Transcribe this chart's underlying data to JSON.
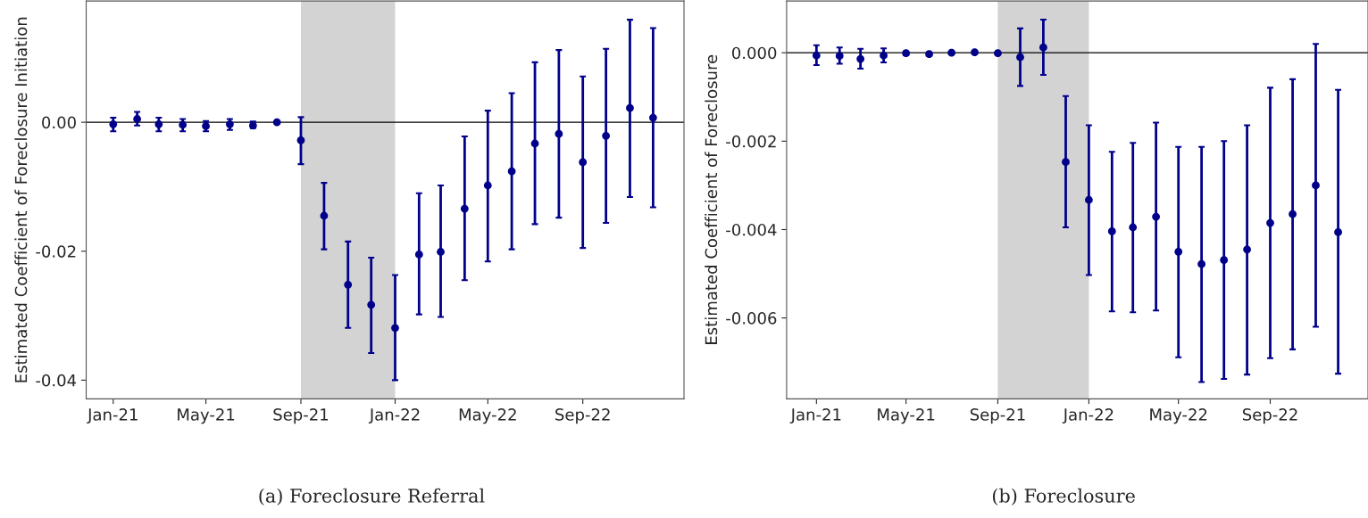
{
  "chart_data": [
    {
      "type": "scatter",
      "ylabel": "Estimated Coefficient of Foreclosure Initiation",
      "annotations": [
        "(a) Foreclosure Referral"
      ],
      "x": [
        "2021-01",
        "2021-02",
        "2021-03",
        "2021-04",
        "2021-05",
        "2021-06",
        "2021-07",
        "2021-08",
        "2021-09",
        "2021-10",
        "2021-11",
        "2021-12",
        "2022-01",
        "2022-02",
        "2022-03",
        "2022-04",
        "2022-05",
        "2022-06",
        "2022-07",
        "2022-08",
        "2022-09",
        "2022-10",
        "2022-11",
        "2022-12"
      ],
      "series": [
        {
          "color": "#00008b",
          "values": [
            -0.0003,
            0.0005,
            -0.0003,
            -0.0004,
            -0.0006,
            -0.0003,
            -0.0005,
            0.0,
            -0.0028,
            -0.0145,
            -0.0252,
            -0.0283,
            -0.0319,
            -0.0205,
            -0.0201,
            -0.0134,
            -0.0098,
            -0.0076,
            -0.0033,
            -0.0018,
            -0.0062,
            -0.0021,
            0.0022,
            0.0007
          ],
          "errors": [
            [
              -0.0014,
              0.0007
            ],
            [
              -0.0005,
              0.0016
            ],
            [
              -0.0014,
              0.0007
            ],
            [
              -0.0014,
              0.0005
            ],
            [
              -0.0014,
              0.0002
            ],
            [
              -0.0012,
              0.0005
            ],
            [
              -0.0009,
              0.0001
            ],
            null,
            [
              -0.0065,
              0.0008
            ],
            [
              -0.0197,
              -0.0094
            ],
            [
              -0.0319,
              -0.0185
            ],
            [
              -0.0358,
              -0.021
            ],
            [
              -0.04,
              -0.0237
            ],
            [
              -0.0298,
              -0.011
            ],
            [
              -0.0302,
              -0.0098
            ],
            [
              -0.0245,
              -0.0022
            ],
            [
              -0.0216,
              0.0018
            ],
            [
              -0.0197,
              0.0045
            ],
            [
              -0.0158,
              0.0093
            ],
            [
              -0.0148,
              0.0112
            ],
            [
              -0.0195,
              0.0071
            ],
            [
              -0.0156,
              0.0114
            ],
            [
              -0.0116,
              0.0159
            ],
            [
              -0.0132,
              0.0146
            ]
          ]
        }
      ],
      "marker": "circle",
      "xlim": [
        "2020-11-27",
        "2023-01-10"
      ],
      "xticks": [
        {
          "value": "2021-01",
          "label": "Jan-21"
        },
        {
          "value": "2021-05",
          "label": "May-21"
        },
        {
          "value": "2021-09",
          "label": "Sep-21"
        },
        {
          "value": "2022-01",
          "label": "Jan-22"
        },
        {
          "value": "2022-05",
          "label": "May-22"
        },
        {
          "value": "2022-09",
          "label": "Sep-22"
        }
      ],
      "ylim": [
        -0.0429,
        0.0188
      ],
      "yticks": [
        {
          "value": 0.0,
          "label": "0.00"
        },
        {
          "value": -0.02,
          "label": "-0.02"
        },
        {
          "value": -0.04,
          "label": "-0.04"
        }
      ],
      "bands": [
        {
          "axis": "x",
          "from": "2021-09",
          "to": "2022-01",
          "color": "#d3d3d3"
        }
      ],
      "ref_lines": [
        {
          "axis": "y",
          "value": 0,
          "color": "#000000"
        }
      ]
    },
    {
      "type": "scatter",
      "ylabel": "Estimated Coefficient of Foreclosure",
      "annotations": [
        "(b) Foreclosure"
      ],
      "x": [
        "2021-01",
        "2021-02",
        "2021-03",
        "2021-04",
        "2021-05",
        "2021-06",
        "2021-07",
        "2021-08",
        "2021-09",
        "2021-10",
        "2021-11",
        "2021-12",
        "2022-01",
        "2022-02",
        "2022-03",
        "2022-04",
        "2022-05",
        "2022-06",
        "2022-07",
        "2022-08",
        "2022-09",
        "2022-10",
        "2022-11",
        "2022-12"
      ],
      "series": [
        {
          "color": "#00008b",
          "values": [
            -6e-05,
            -7e-05,
            -0.00014,
            -6e-05,
            -1e-05,
            -3e-05,
            0.0,
            1e-05,
            -1e-05,
            -0.0001,
            0.00012,
            -0.00247,
            -0.00333,
            -0.00404,
            -0.00395,
            -0.00371,
            -0.0045,
            -0.00478,
            -0.00469,
            -0.00445,
            -0.00385,
            -0.00365,
            -0.003,
            -0.00406
          ],
          "errors": [
            [
              -0.00028,
              0.00017
            ],
            [
              -0.00025,
              0.00012
            ],
            [
              -0.00036,
              9e-05
            ],
            [
              -0.00022,
              0.0001
            ],
            [
              -5e-05,
              3e-05
            ],
            [
              -7e-05,
              1e-05
            ],
            null,
            null,
            null,
            [
              -0.00075,
              0.00055
            ],
            [
              -0.0005,
              0.00075
            ],
            [
              -0.00395,
              -0.00098
            ],
            [
              -0.00503,
              -0.00164
            ],
            [
              -0.00585,
              -0.00224
            ],
            [
              -0.00587,
              -0.00204
            ],
            [
              -0.00583,
              -0.00158
            ],
            [
              -0.00689,
              -0.00213
            ],
            [
              -0.00745,
              -0.00213
            ],
            [
              -0.00738,
              -0.002
            ],
            [
              -0.00728,
              -0.00164
            ],
            [
              -0.00691,
              -0.00079
            ],
            [
              -0.00671,
              -0.0006
            ],
            [
              -0.0062,
              0.0002
            ],
            [
              -0.00726,
              -0.00084
            ]
          ]
        }
      ],
      "marker": "circle",
      "xlim": [
        "2020-11-22",
        "2023-01-10"
      ],
      "xticks": [
        {
          "value": "2021-01",
          "label": "Jan-21"
        },
        {
          "value": "2021-05",
          "label": "May-21"
        },
        {
          "value": "2021-09",
          "label": "Sep-21"
        },
        {
          "value": "2022-01",
          "label": "Jan-22"
        },
        {
          "value": "2022-05",
          "label": "May-22"
        },
        {
          "value": "2022-09",
          "label": "Sep-22"
        }
      ],
      "ylim": [
        -0.00783,
        0.00117
      ],
      "yticks": [
        {
          "value": 0.0,
          "label": "0.000"
        },
        {
          "value": -0.002,
          "label": "-0.002"
        },
        {
          "value": -0.004,
          "label": "-0.004"
        },
        {
          "value": -0.006,
          "label": "-0.006"
        }
      ],
      "bands": [
        {
          "axis": "x",
          "from": "2021-09",
          "to": "2022-01",
          "color": "#d3d3d3"
        }
      ],
      "ref_lines": [
        {
          "axis": "y",
          "value": 0,
          "color": "#000000"
        }
      ]
    }
  ]
}
